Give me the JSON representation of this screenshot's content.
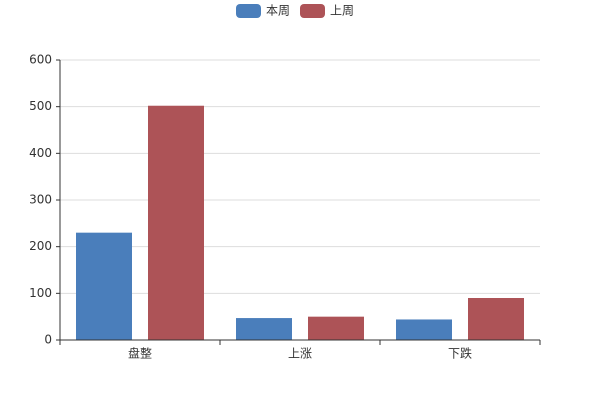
{
  "chart_data": {
    "type": "bar",
    "categories": [
      "盘整",
      "上涨",
      "下跌"
    ],
    "series": [
      {
        "name": "本周",
        "color": "#4a7ebb",
        "values": [
          230,
          47,
          44
        ]
      },
      {
        "name": "上周",
        "color": "#ad5357",
        "values": [
          502,
          50,
          90
        ]
      }
    ],
    "ylim": [
      0,
      600
    ],
    "yticks": [
      0,
      100,
      200,
      300,
      400,
      500,
      600
    ],
    "grid": true,
    "legend": "top"
  }
}
